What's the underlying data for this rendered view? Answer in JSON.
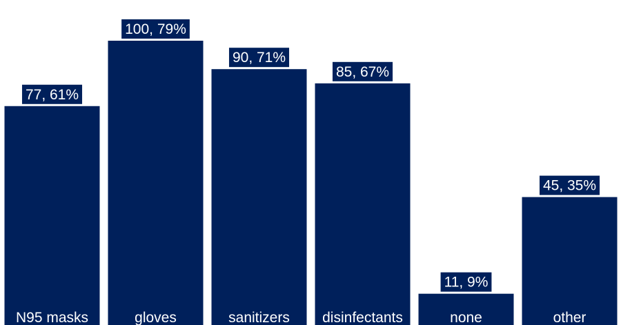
{
  "chart_data": {
    "type": "bar",
    "categories": [
      "N95 masks",
      "gloves",
      "sanitizers",
      "disinfectants",
      "none",
      "other"
    ],
    "values": [
      77,
      100,
      90,
      85,
      11,
      45
    ],
    "percentages": [
      "61%",
      "79%",
      "71%",
      "67%",
      "9%",
      "35%"
    ],
    "data_labels": [
      "77, 61%",
      "100, 79%",
      "90, 71%",
      "85, 67%",
      "11, 9%",
      "45, 35%"
    ],
    "title": "",
    "xlabel": "",
    "ylabel": "",
    "grid": false,
    "legend": "none",
    "colors": {
      "bar": "#00205b",
      "label_text": "#ffffff",
      "background": "#ffffff"
    }
  }
}
